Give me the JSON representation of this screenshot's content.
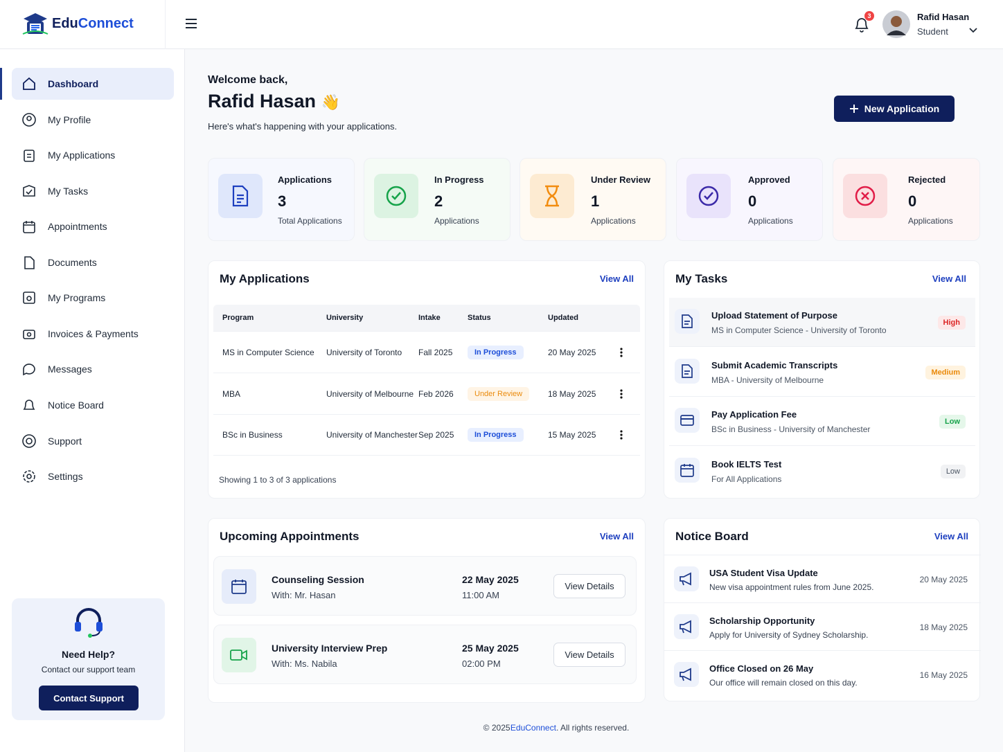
{
  "header": {
    "logo": {
      "part1": "Edu",
      "part2": "Connect"
    },
    "notifications": 3,
    "user": {
      "name": "Rafid Hasan",
      "role": "Student"
    }
  },
  "sidebar": {
    "menu": [
      "Dashboard",
      "My Profile",
      "My Applications",
      "My Tasks",
      "Appointments",
      "Documents",
      "My Programs",
      "Invoices & Payments",
      "Messages",
      "Notice Board",
      "Support",
      "Settings"
    ],
    "help": {
      "title": "Need Help?",
      "text": "Contact our support team",
      "button": "Contact Support"
    }
  },
  "welcome": {
    "greeting": "Welcome back,",
    "name": "Rafid Hasan",
    "emoji": "👋",
    "subtitle": "Here's what's happening with your applications.",
    "button": "New Application"
  },
  "stats": [
    {
      "label": "Applications",
      "value": 3,
      "caption": "Total Applications"
    },
    {
      "label": "In Progress",
      "value": 2,
      "caption": "Applications"
    },
    {
      "label": "Under Review",
      "value": 1,
      "caption": "Applications"
    },
    {
      "label": "Approved",
      "value": 0,
      "caption": "Applications"
    },
    {
      "label": "Rejected",
      "value": 0,
      "caption": "Applications"
    }
  ],
  "applications": {
    "title": "My Applications",
    "view_all": "View All",
    "columns": [
      "Program",
      "University",
      "Intake",
      "Status",
      "Updated"
    ],
    "rows": [
      [
        "MS in Computer Science",
        "University of Toronto",
        "Fall 2025",
        "In Progress",
        "20 May 2025"
      ],
      [
        "MBA",
        "University of Melbourne",
        "Feb 2026",
        "Under Review",
        "18 May 2025"
      ],
      [
        "BSc in Business",
        "University of Manchester",
        "Sep 2025",
        "In Progress",
        "15 May 2025"
      ]
    ],
    "footer": "Showing 1 to 3 of 3 applications"
  },
  "tasks": {
    "title": "My Tasks",
    "view_all": "View All",
    "items": [
      {
        "title": "Upload Statement of Purpose",
        "subtitle": "MS in Computer Science - University of Toronto",
        "priority": "High"
      },
      {
        "title": "Submit Academic Transcripts",
        "subtitle": "MBA - University of Melbourne",
        "priority": "Medium"
      },
      {
        "title": "Pay Application Fee",
        "subtitle": "BSc in Business - University of Manchester",
        "priority": "Low"
      },
      {
        "title": "Book IELTS Test",
        "subtitle": "For All Applications",
        "priority": "Low"
      }
    ]
  },
  "appointments": {
    "title": "Upcoming Appointments",
    "view_all": "View All",
    "items": [
      {
        "title": "Counseling Session",
        "with": "With: Mr. Hasan",
        "date": "22 May 2025",
        "time": "11:00 AM",
        "button": "View Details"
      },
      {
        "title": "University Interview Prep",
        "with": "With: Ms. Nabila",
        "date": "25 May 2025",
        "time": "02:00 PM",
        "button": "View Details"
      }
    ]
  },
  "notices": {
    "title": "Notice Board",
    "view_all": "View All",
    "items": [
      {
        "title": "USA Student Visa Update",
        "text": "New visa appointment rules from June 2025.",
        "date": "20 May 2025"
      },
      {
        "title": "Scholarship Opportunity",
        "text": "Apply for University of Sydney Scholarship.",
        "date": "18 May 2025"
      },
      {
        "title": "Office Closed on 26 May",
        "text": "Our office will remain closed on this day.",
        "date": "16 May 2025"
      }
    ]
  },
  "footer": {
    "prefix": "© 2025",
    "brand": "EduConnect",
    "suffix": ". All rights reserved."
  }
}
